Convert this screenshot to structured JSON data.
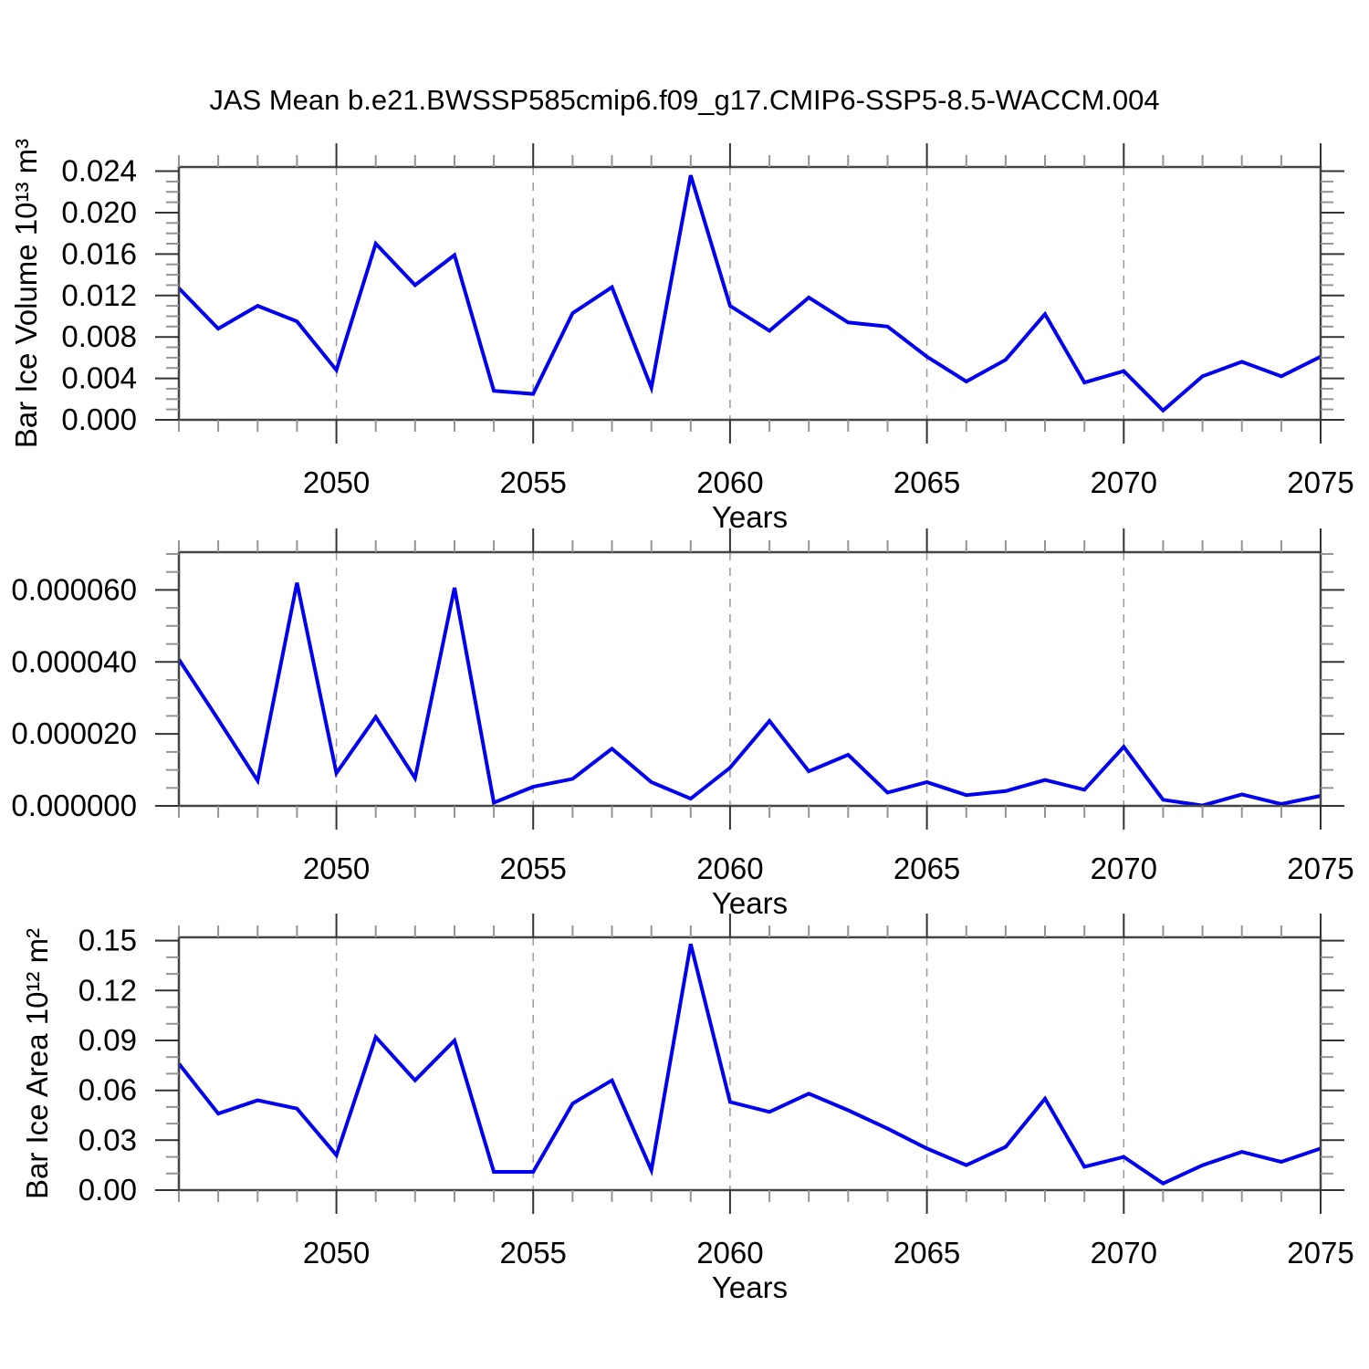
{
  "title": "JAS Mean b.e21.BWSSP585cmip6.f09_g17.CMIP6-SSP5-8.5-WACCM.004",
  "chart_data": [
    {
      "type": "line",
      "ylabel": "Bar Ice Volume 10¹³ m³",
      "xlabel": "Years",
      "line_color": "#0000ee",
      "legend": "none",
      "grid": "dashed vertical lines at major x ticks",
      "x": [
        2046,
        2047,
        2048,
        2049,
        2050,
        2051,
        2052,
        2053,
        2054,
        2055,
        2056,
        2057,
        2058,
        2059,
        2060,
        2061,
        2062,
        2063,
        2064,
        2065,
        2066,
        2067,
        2068,
        2069,
        2070,
        2071,
        2072,
        2073,
        2074,
        2075
      ],
      "y": [
        0.0127,
        0.0088,
        0.011,
        0.0095,
        0.0048,
        0.017,
        0.013,
        0.0159,
        0.0028,
        0.0025,
        0.0103,
        0.0128,
        0.0031,
        0.0236,
        0.011,
        0.0086,
        0.0118,
        0.0094,
        0.009,
        0.0061,
        0.0037,
        0.0058,
        0.0102,
        0.0036,
        0.0047,
        0.0009,
        0.0042,
        0.0056,
        0.0042,
        0.0061
      ],
      "xlim": [
        2046,
        2075
      ],
      "ylim": [
        0,
        0.0244
      ],
      "xticks": {
        "values": [
          2050,
          2055,
          2060,
          2065,
          2070,
          2075
        ],
        "labels": [
          "2050",
          "2055",
          "2060",
          "2065",
          "2070",
          "2075"
        ],
        "minor_step": 1
      },
      "yticks": {
        "values": [
          0,
          0.004,
          0.008,
          0.012,
          0.016,
          0.02,
          0.024
        ],
        "labels": [
          "0.000",
          "0.004",
          "0.008",
          "0.012",
          "0.016",
          "0.020",
          "0.024"
        ],
        "minor_step": 0.001
      },
      "grid_dashed_x": [
        2050,
        2055,
        2060,
        2065,
        2070
      ]
    },
    {
      "type": "line",
      "ylabel": "",
      "xlabel": "Years",
      "line_color": "#0000ee",
      "legend": "none",
      "grid": "dashed vertical lines at major x ticks",
      "x": [
        2046,
        2047,
        2048,
        2049,
        2050,
        2051,
        2052,
        2053,
        2054,
        2055,
        2056,
        2057,
        2058,
        2059,
        2060,
        2061,
        2062,
        2063,
        2064,
        2065,
        2066,
        2067,
        2068,
        2069,
        2070,
        2071,
        2072,
        2073,
        2074,
        2075
      ],
      "y": [
        4.07e-05,
        2.4e-05,
        7e-06,
        6.2e-05,
        9.1e-06,
        2.47e-05,
        7.7e-06,
        6.06e-05,
        9e-07,
        5.3e-06,
        7.5e-06,
        1.59e-05,
        6.6e-06,
        2e-06,
        1.06e-05,
        2.36e-05,
        9.6e-06,
        1.42e-05,
        3.7e-06,
        6.6e-06,
        3e-06,
        4.1e-06,
        7.2e-06,
        4.5e-06,
        1.64e-05,
        1.7e-06,
        1e-07,
        3.2e-06,
        5e-07,
        2.8e-06
      ],
      "xlim": [
        2046,
        2075
      ],
      "ylim": [
        0,
        7.05e-05
      ],
      "xticks": {
        "values": [
          2050,
          2055,
          2060,
          2065,
          2070,
          2075
        ],
        "labels": [
          "2050",
          "2055",
          "2060",
          "2065",
          "2070",
          "2075"
        ],
        "minor_step": 1
      },
      "yticks": {
        "values": [
          0,
          2e-05,
          4e-05,
          6e-05
        ],
        "labels": [
          "0.000000",
          "0.000020",
          "0.000040",
          "0.000060"
        ],
        "minor_step": 5e-06
      },
      "grid_dashed_x": [
        2050,
        2055,
        2060,
        2065,
        2070
      ]
    },
    {
      "type": "line",
      "ylabel": "Bar Ice Area 10¹² m²",
      "xlabel": "Years",
      "line_color": "#0000ee",
      "legend": "none",
      "grid": "dashed vertical lines at major x ticks",
      "x": [
        2046,
        2047,
        2048,
        2049,
        2050,
        2051,
        2052,
        2053,
        2054,
        2055,
        2056,
        2057,
        2058,
        2059,
        2060,
        2061,
        2062,
        2063,
        2064,
        2065,
        2066,
        2067,
        2068,
        2069,
        2070,
        2071,
        2072,
        2073,
        2074,
        2075
      ],
      "y": [
        0.076,
        0.046,
        0.054,
        0.049,
        0.021,
        0.092,
        0.066,
        0.09,
        0.011,
        0.011,
        0.052,
        0.066,
        0.012,
        0.148,
        0.053,
        0.047,
        0.058,
        0.048,
        0.037,
        0.025,
        0.015,
        0.026,
        0.055,
        0.014,
        0.02,
        0.004,
        0.015,
        0.023,
        0.017,
        0.025
      ],
      "xlim": [
        2046,
        2075
      ],
      "ylim": [
        0,
        0.152
      ],
      "xticks": {
        "values": [
          2050,
          2055,
          2060,
          2065,
          2070,
          2075
        ],
        "labels": [
          "2050",
          "2055",
          "2060",
          "2065",
          "2070",
          "2075"
        ],
        "minor_step": 1
      },
      "yticks": {
        "values": [
          0,
          0.03,
          0.06,
          0.09,
          0.12,
          0.15
        ],
        "labels": [
          "0.00",
          "0.03",
          "0.06",
          "0.09",
          "0.12",
          "0.15"
        ],
        "minor_step": 0.01
      },
      "grid_dashed_x": [
        2050,
        2055,
        2060,
        2065,
        2070
      ]
    }
  ]
}
